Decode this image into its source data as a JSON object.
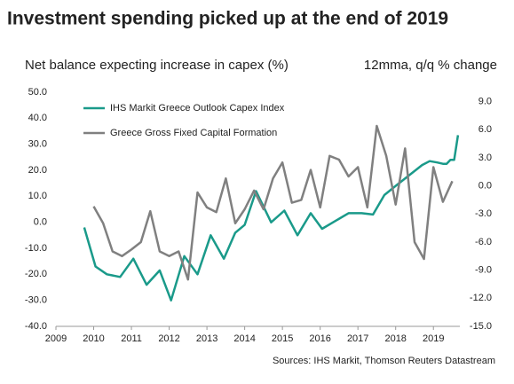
{
  "chart_data": {
    "type": "line",
    "title": "Investment spending picked up at the end of 2019",
    "y_label": "Net balance expecting increase in capex (%)",
    "y2_label": "12mma, q/q % change",
    "source": "Sources: IHS Markit, Thomson Reuters Datastream",
    "xlim": [
      2009,
      2019.7
    ],
    "xticks": [
      2009,
      2010,
      2011,
      2012,
      2013,
      2014,
      2015,
      2016,
      2017,
      2018,
      2019
    ],
    "ylim": [
      -40,
      50
    ],
    "yticks": [
      {
        "value": -40,
        "label": "-40.0"
      },
      {
        "value": -30,
        "label": "-30.0"
      },
      {
        "value": -20,
        "label": "-20.0"
      },
      {
        "value": -10,
        "label": "-10.0"
      },
      {
        "value": 0,
        "label": "0.0"
      },
      {
        "value": 10,
        "label": "10.0"
      },
      {
        "value": 20,
        "label": "20.0"
      },
      {
        "value": 30,
        "label": "30.0"
      },
      {
        "value": 40,
        "label": "40.0"
      },
      {
        "value": 50,
        "label": "50.0"
      }
    ],
    "y2lim": [
      -15,
      10
    ],
    "y2ticks": [
      {
        "value": -15,
        "label": "-15.0"
      },
      {
        "value": -12,
        "label": "-12.0"
      },
      {
        "value": -9,
        "label": "-9.0"
      },
      {
        "value": -6,
        "label": "-6.0"
      },
      {
        "value": -3,
        "label": "-3.0"
      },
      {
        "value": 0,
        "label": "0.0"
      },
      {
        "value": 3,
        "label": "3.0"
      },
      {
        "value": 6,
        "label": "6.0"
      },
      {
        "value": 9,
        "label": "9.0"
      }
    ],
    "legend": "upper left",
    "series": [
      {
        "name": "IHS Markit Greece Outlook Capex Index",
        "color": "#1a9a8a",
        "x": [
          2009.75,
          2010.05,
          2010.35,
          2010.7,
          2011.05,
          2011.4,
          2011.75,
          2012.05,
          2012.4,
          2012.75,
          2013.1,
          2013.45,
          2013.75,
          2014.0,
          2014.3,
          2014.7,
          2015.05,
          2015.4,
          2015.75,
          2016.05,
          2016.4,
          2016.75,
          2017.1,
          2017.4,
          2017.7,
          2018.0,
          2018.35,
          2018.7,
          2018.9,
          2019.1,
          2019.25,
          2019.35,
          2019.45,
          2019.55,
          2019.65
        ],
        "values": [
          -2,
          -17,
          -20,
          -21,
          -14,
          -24,
          -18.5,
          -30,
          -13,
          -20,
          -5,
          -14,
          -4,
          -1,
          12,
          0,
          4.5,
          -5,
          3.5,
          -2.5,
          0.5,
          3.5,
          3.5,
          3,
          10.5,
          14,
          18,
          22,
          23.5,
          23,
          22.5,
          22.5,
          24,
          24,
          33.5
        ]
      },
      {
        "name": "Greece Gross Fixed Capital Formation",
        "color": "#808080",
        "axis": "y2",
        "x": [
          2010.0,
          2010.25,
          2010.5,
          2010.75,
          2011.0,
          2011.25,
          2011.5,
          2011.75,
          2012.0,
          2012.25,
          2012.5,
          2012.75,
          2013.0,
          2013.25,
          2013.5,
          2013.75,
          2014.0,
          2014.25,
          2014.5,
          2014.75,
          2015.0,
          2015.25,
          2015.5,
          2015.75,
          2016.0,
          2016.25,
          2016.5,
          2016.75,
          2017.0,
          2017.25,
          2017.5,
          2017.75,
          2018.0,
          2018.25,
          2018.5,
          2018.75,
          2019.0,
          2019.25,
          2019.5
        ],
        "values": [
          -2.2,
          -4,
          -7,
          -7.5,
          -6.8,
          -6,
          -2.7,
          -7,
          -7.5,
          -7,
          -10,
          -0.7,
          -2.3,
          -2.8,
          0.8,
          -4,
          -2.5,
          -0.5,
          -2.5,
          0.8,
          2.5,
          -1.8,
          -1.5,
          1.7,
          -2.3,
          3.2,
          2.8,
          1,
          2,
          -2.3,
          6.4,
          3.2,
          -2,
          4,
          -6,
          -7.8,
          2,
          -1.7,
          0.5
        ]
      }
    ]
  }
}
